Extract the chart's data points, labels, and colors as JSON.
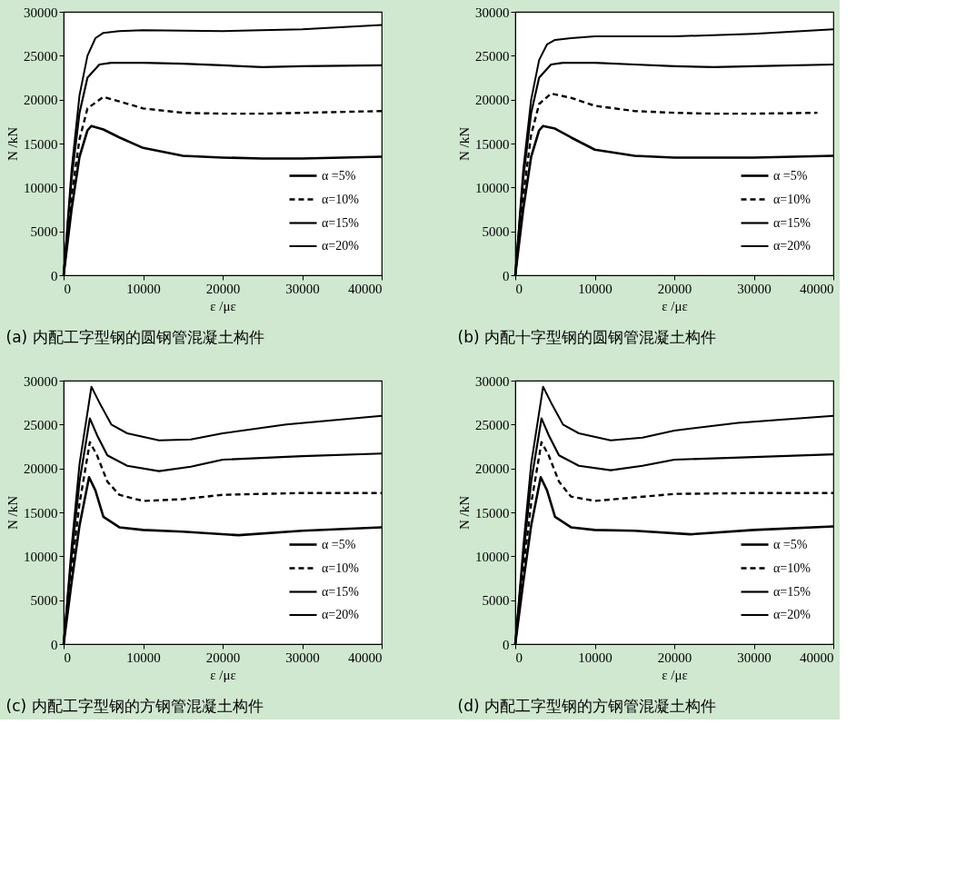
{
  "chart_data": [
    {
      "type": "line",
      "title": "(a)  内配工字型钢的圆钢管混凝土构件",
      "xlabel": "ε /με",
      "ylabel": "N /kN",
      "xlim": [
        0,
        40000
      ],
      "ylim": [
        0,
        30000
      ],
      "xticks": [
        0,
        10000,
        20000,
        30000,
        40000
      ],
      "yticks": [
        0,
        5000,
        10000,
        15000,
        20000,
        25000,
        30000
      ],
      "grid": false,
      "legend": "bottom right",
      "marker": "none",
      "series": [
        {
          "name": "α =5%",
          "color": "#000000",
          "line_style": "solid",
          "x": [
            0,
            1000,
            2000,
            3000,
            3500,
            5000,
            7000,
            10000,
            15000,
            20000,
            25000,
            30000,
            40000
          ],
          "values": [
            0,
            7500,
            13500,
            16500,
            17000,
            16600,
            15700,
            14500,
            13600,
            13400,
            13300,
            13300,
            13500
          ]
        },
        {
          "name": "α=10%",
          "color": "#000000",
          "line_style": "dashed",
          "x": [
            0,
            1000,
            2000,
            3000,
            5000,
            7000,
            10000,
            15000,
            20000,
            25000,
            30000,
            40000
          ],
          "values": [
            0,
            9000,
            15500,
            19000,
            20300,
            19800,
            19000,
            18500,
            18400,
            18400,
            18500,
            18700
          ]
        },
        {
          "name": "α=15%",
          "color": "#000000",
          "line_style": "solid",
          "x": [
            0,
            1000,
            2000,
            3000,
            4500,
            6000,
            10000,
            15000,
            20000,
            25000,
            30000,
            40000
          ],
          "values": [
            0,
            11000,
            18500,
            22500,
            24000,
            24200,
            24200,
            24100,
            23900,
            23700,
            23800,
            23900
          ]
        },
        {
          "name": "α=20%",
          "color": "#000000",
          "line_style": "solid",
          "x": [
            0,
            1000,
            2000,
            3000,
            4000,
            5000,
            7000,
            10000,
            20000,
            30000,
            40000
          ],
          "values": [
            0,
            12000,
            20500,
            25000,
            27000,
            27600,
            27800,
            27900,
            27800,
            28000,
            28500
          ]
        }
      ]
    },
    {
      "type": "line",
      "title": "(b)  内配十字型钢的圆钢管混凝土构件",
      "xlabel": "ε /με",
      "ylabel": "N /kN",
      "xlim": [
        0,
        40000
      ],
      "ylim": [
        0,
        30000
      ],
      "xticks": [
        0,
        10000,
        20000,
        30000,
        40000
      ],
      "yticks": [
        0,
        5000,
        10000,
        15000,
        20000,
        25000,
        30000
      ],
      "grid": false,
      "legend": "bottom right",
      "marker": "none",
      "series": [
        {
          "name": "α =5%",
          "color": "#000000",
          "line_style": "solid",
          "x": [
            0,
            1000,
            2000,
            3000,
            3500,
            5000,
            7000,
            10000,
            15000,
            20000,
            25000,
            30000,
            40000
          ],
          "values": [
            0,
            7500,
            13500,
            16500,
            17000,
            16700,
            15700,
            14300,
            13600,
            13400,
            13400,
            13400,
            13600
          ]
        },
        {
          "name": "α=10%",
          "color": "#000000",
          "line_style": "dashed",
          "x": [
            0,
            1000,
            2000,
            3000,
            4500,
            7000,
            10000,
            15000,
            20000,
            25000,
            30000,
            38000
          ],
          "values": [
            0,
            9000,
            16000,
            19500,
            20700,
            20200,
            19300,
            18700,
            18500,
            18400,
            18400,
            18500
          ]
        },
        {
          "name": "α=15%",
          "color": "#000000",
          "line_style": "solid",
          "x": [
            0,
            1000,
            2000,
            3000,
            4500,
            6000,
            10000,
            15000,
            20000,
            25000,
            30000,
            40000
          ],
          "values": [
            0,
            11000,
            18500,
            22500,
            24000,
            24200,
            24200,
            24000,
            23800,
            23700,
            23800,
            24000
          ]
        },
        {
          "name": "α=20%",
          "color": "#000000",
          "line_style": "solid",
          "x": [
            0,
            1000,
            2000,
            3000,
            4000,
            5000,
            7000,
            10000,
            20000,
            30000,
            40000
          ],
          "values": [
            0,
            12000,
            20000,
            24500,
            26300,
            26800,
            27000,
            27200,
            27200,
            27500,
            28000
          ]
        }
      ]
    },
    {
      "type": "line",
      "title": "(c)  内配工字型钢的方钢管混凝土构件",
      "xlabel": "ε /με",
      "ylabel": "N /kN",
      "xlim": [
        0,
        40000
      ],
      "ylim": [
        0,
        30000
      ],
      "xticks": [
        0,
        10000,
        20000,
        30000,
        40000
      ],
      "yticks": [
        0,
        5000,
        10000,
        15000,
        20000,
        25000,
        30000
      ],
      "grid": false,
      "legend": "bottom right",
      "marker": "none",
      "series": [
        {
          "name": "α =5%",
          "color": "#000000",
          "line_style": "solid",
          "x": [
            0,
            1000,
            2000,
            3200,
            4000,
            5000,
            7000,
            10000,
            15000,
            22000,
            30000,
            40000
          ],
          "values": [
            0,
            7000,
            13500,
            19000,
            17500,
            14500,
            13300,
            13000,
            12800,
            12400,
            12900,
            13300
          ]
        },
        {
          "name": "α=10%",
          "color": "#000000",
          "line_style": "dashed",
          "x": [
            0,
            1000,
            2000,
            3300,
            4200,
            5500,
            7000,
            10000,
            15000,
            20000,
            30000,
            40000
          ],
          "values": [
            0,
            8500,
            16000,
            23000,
            21500,
            18500,
            17000,
            16300,
            16500,
            17000,
            17200,
            17200
          ]
        },
        {
          "name": "α=15%",
          "color": "#000000",
          "line_style": "solid",
          "x": [
            0,
            1000,
            2000,
            3300,
            4200,
            5500,
            8000,
            12000,
            16000,
            20000,
            30000,
            40000
          ],
          "values": [
            0,
            10000,
            18500,
            25700,
            23800,
            21500,
            20300,
            19700,
            20200,
            21000,
            21400,
            21700
          ]
        },
        {
          "name": "α=20%",
          "color": "#000000",
          "line_style": "solid",
          "x": [
            0,
            1000,
            2000,
            3500,
            4500,
            6000,
            8000,
            12000,
            16000,
            20000,
            28000,
            40000
          ],
          "values": [
            0,
            11000,
            20500,
            29300,
            27500,
            25000,
            24000,
            23200,
            23300,
            24000,
            25000,
            26000
          ]
        }
      ]
    },
    {
      "type": "line",
      "title": "(d)  内配工字型钢的方钢管混凝土构件",
      "xlabel": "ε /με",
      "ylabel": "N /kN",
      "xlim": [
        0,
        40000
      ],
      "ylim": [
        0,
        30000
      ],
      "xticks": [
        0,
        10000,
        20000,
        30000,
        40000
      ],
      "yticks": [
        0,
        5000,
        10000,
        15000,
        20000,
        25000,
        30000
      ],
      "grid": false,
      "legend": "bottom right",
      "marker": "none",
      "series": [
        {
          "name": "α =5%",
          "color": "#000000",
          "line_style": "solid",
          "x": [
            0,
            1000,
            2000,
            3200,
            4000,
            5000,
            7000,
            10000,
            15000,
            22000,
            30000,
            40000
          ],
          "values": [
            0,
            7000,
            13500,
            19000,
            17500,
            14500,
            13300,
            13000,
            12900,
            12500,
            13000,
            13400
          ]
        },
        {
          "name": "α=10%",
          "color": "#000000",
          "line_style": "dashed",
          "x": [
            0,
            1000,
            2000,
            3300,
            4200,
            5500,
            7000,
            10000,
            15000,
            20000,
            30000,
            40000
          ],
          "values": [
            0,
            8500,
            16000,
            23000,
            21500,
            18500,
            16800,
            16300,
            16700,
            17100,
            17200,
            17200
          ]
        },
        {
          "name": "α=15%",
          "color": "#000000",
          "line_style": "solid",
          "x": [
            0,
            1000,
            2000,
            3300,
            4200,
            5500,
            8000,
            12000,
            16000,
            20000,
            30000,
            40000
          ],
          "values": [
            0,
            10000,
            18500,
            25700,
            23800,
            21500,
            20300,
            19800,
            20300,
            21000,
            21300,
            21600
          ]
        },
        {
          "name": "α=20%",
          "color": "#000000",
          "line_style": "solid",
          "x": [
            0,
            1000,
            2000,
            3500,
            4500,
            6000,
            8000,
            12000,
            16000,
            20000,
            28000,
            40000
          ],
          "values": [
            0,
            11000,
            20500,
            29300,
            27500,
            25000,
            24000,
            23200,
            23500,
            24300,
            25200,
            26000
          ]
        }
      ]
    }
  ]
}
